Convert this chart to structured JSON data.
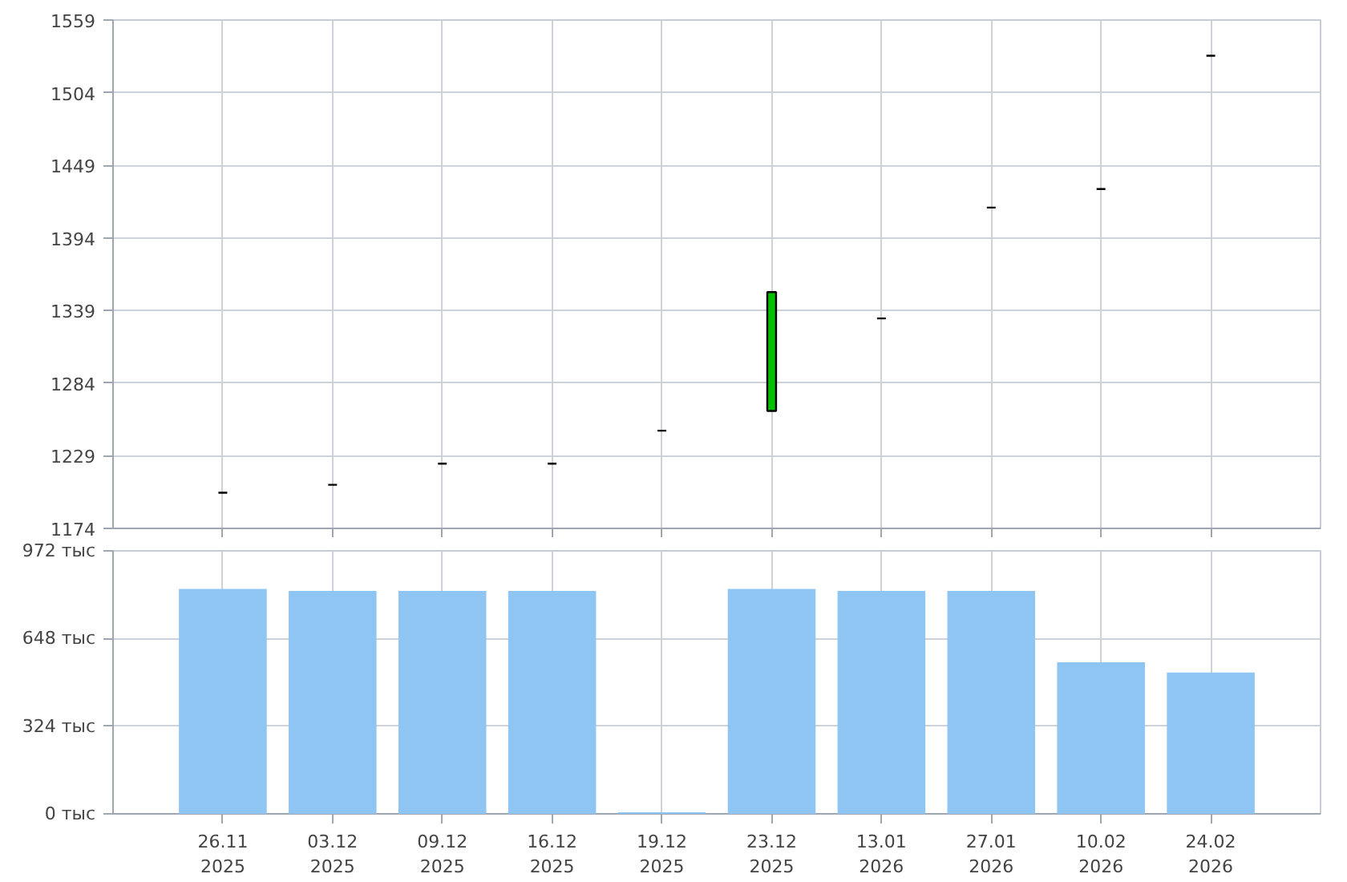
{
  "chart_data": [
    {
      "type": "candlestick",
      "categories": [
        "26.11\n2025",
        "03.12\n2025",
        "09.12\n2025",
        "16.12\n2025",
        "19.12\n2025",
        "23.12\n2025",
        "13.01\n2026",
        "27.01\n2026",
        "10.02\n2026",
        "24.02\n2026"
      ],
      "ohlc": [
        [
          1201,
          1201,
          1201,
          1201
        ],
        [
          1207,
          1207,
          1207,
          1207
        ],
        [
          1223,
          1223,
          1223,
          1223
        ],
        [
          1223,
          1223,
          1223,
          1223
        ],
        [
          1248,
          1248,
          1248,
          1248
        ],
        [
          1263,
          1353,
          1263,
          1353
        ],
        [
          1333,
          1333,
          1333,
          1333
        ],
        [
          1417,
          1417,
          1417,
          1417
        ],
        [
          1431,
          1431,
          1431,
          1431
        ],
        [
          1532,
          1532,
          1532,
          1532
        ]
      ],
      "colors": [
        "#000000",
        "#000000",
        "#000000",
        "#000000",
        "#000000",
        "#00c000",
        "#000000",
        "#000000",
        "#000000",
        "#000000"
      ],
      "ylim": [
        1174,
        1559
      ],
      "yticks": [
        1174,
        1229,
        1284,
        1339,
        1394,
        1449,
        1504,
        1559
      ],
      "grid": true,
      "tick_labels": "y"
    },
    {
      "type": "bar",
      "categories": [
        "26.11\n2025",
        "03.12\n2025",
        "09.12\n2025",
        "16.12\n2025",
        "19.12\n2025",
        "23.12\n2025",
        "13.01\n2026",
        "27.01\n2026",
        "10.02\n2026",
        "24.02\n2026"
      ],
      "values": [
        831,
        824,
        824,
        824,
        6,
        831,
        824,
        824,
        560,
        522
      ],
      "color": "#8ec5f2",
      "ylim": [
        0,
        972
      ],
      "yticks": [
        {
          "value": 0,
          "label": "0 тыс"
        },
        {
          "value": 324,
          "label": "324 тыс"
        },
        {
          "value": 648,
          "label": "648 тыс"
        },
        {
          "value": 972,
          "label": "972 тыс"
        }
      ],
      "grid": true
    }
  ]
}
